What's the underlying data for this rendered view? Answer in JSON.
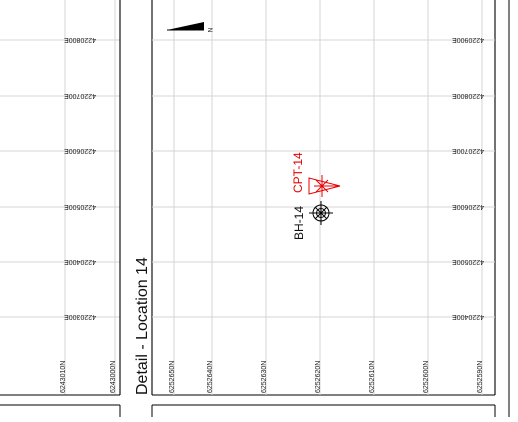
{
  "colors": {
    "grid": "#d4d4d4",
    "frame": "#000000",
    "text": "#222222",
    "cpt": "#e60000"
  },
  "left_panel": {
    "easting_labels": [
      "4220800E",
      "4220700E",
      "4220600E",
      "4220500E",
      "4220400E",
      "4220300E"
    ],
    "northing_labels": [
      "6243010N",
      "6243000N"
    ]
  },
  "detail": {
    "title": "Detail - Location 14",
    "north_arrow_label": "N",
    "easting_labels": [
      "4220900E",
      "4220800E",
      "4220700E",
      "4220600E",
      "4220500E",
      "4220400E"
    ],
    "northing_labels": [
      "6252650N",
      "6252640N",
      "6252630N",
      "6252620N",
      "6252610N",
      "6252600N",
      "6252590N"
    ],
    "points": [
      {
        "id": "CPT-14",
        "label": "CPT-14",
        "symbol": "cone-triangle-icon"
      },
      {
        "id": "BH-14",
        "label": "BH-14",
        "symbol": "borehole-crosshair-icon"
      }
    ]
  }
}
